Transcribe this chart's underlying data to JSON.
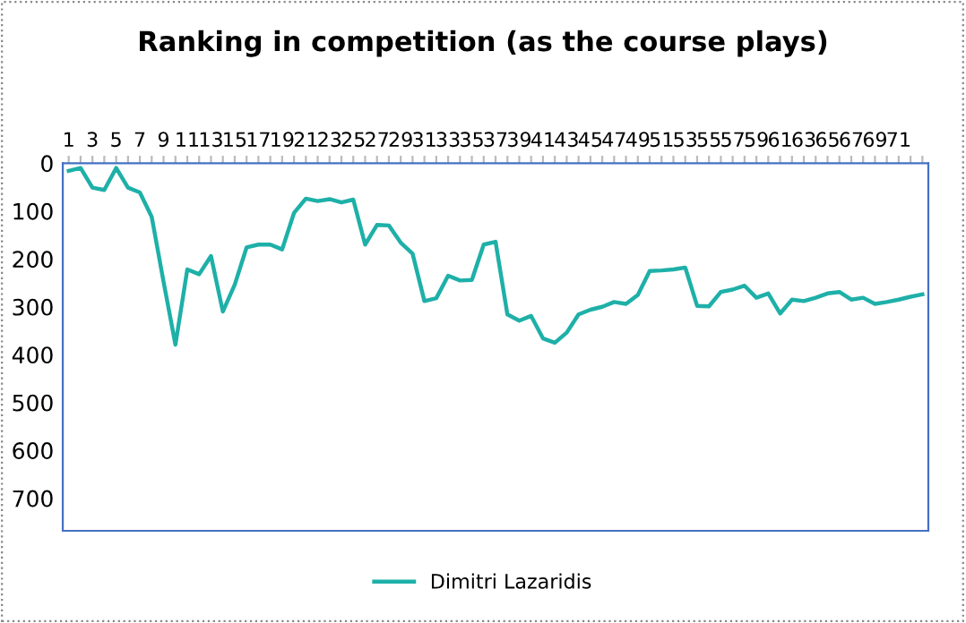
{
  "chart_data": {
    "type": "line",
    "title": "Ranking in competition (as the course plays)",
    "categories": [
      "1",
      null,
      "3",
      null,
      "5",
      null,
      "7",
      null,
      "9",
      null,
      "11",
      null,
      "13",
      null,
      "15",
      null,
      "17",
      null,
      "19",
      null,
      "21",
      null,
      "23",
      null,
      "25",
      null,
      "27",
      null,
      "29",
      null,
      "31",
      null,
      "33",
      null,
      "35",
      null,
      "37",
      null,
      "39",
      null,
      "41",
      null,
      "43",
      null,
      "45",
      null,
      "47",
      null,
      "49",
      null,
      "51",
      null,
      "53",
      null,
      "55",
      null,
      "57",
      null,
      "59",
      null,
      "61",
      null,
      "63",
      null,
      "65",
      null,
      "67",
      null,
      "69",
      null,
      "71",
      null,
      null
    ],
    "series": [
      {
        "name": "Dimitri Lazaridis",
        "color": "#1eb0a8",
        "values": [
          16,
          10,
          51,
          56,
          10,
          51,
          61,
          112,
          248,
          379,
          222,
          232,
          194,
          310,
          254,
          176,
          170,
          170,
          180,
          104,
          74,
          79,
          75,
          82,
          76,
          170,
          129,
          130,
          166,
          189,
          288,
          282,
          235,
          245,
          244,
          170,
          164,
          316,
          329,
          319,
          366,
          375,
          354,
          316,
          306,
          300,
          290,
          294,
          275,
          225,
          224,
          222,
          218,
          298,
          299,
          269,
          264,
          256,
          281,
          272,
          314,
          285,
          288,
          281,
          272,
          269,
          285,
          281,
          294,
          290,
          285,
          279,
          274
        ]
      }
    ],
    "ylim": [
      768,
      0
    ],
    "yticks": [
      0,
      100,
      200,
      300,
      400,
      500,
      600,
      700
    ],
    "grid": false,
    "legend": "bottom",
    "marker": "none",
    "line_style": "solid"
  }
}
